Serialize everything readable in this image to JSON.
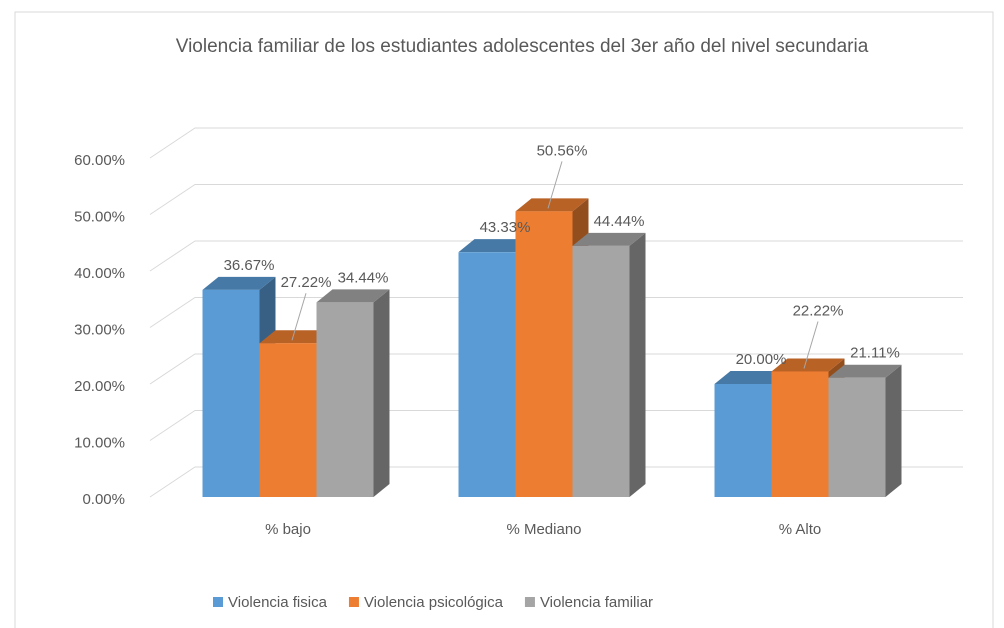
{
  "chart_data": {
    "type": "bar3d",
    "title": "Violencia familiar de los estudiantes adolescentes del 3er año del nivel secundaria",
    "categories": [
      "% bajo",
      "% Mediano",
      "% Alto"
    ],
    "series": [
      {
        "name": "Violencia fisica",
        "color": "#5b9bd5",
        "values": [
          36.67,
          43.33,
          20.0
        ],
        "value_labels": [
          "36.67%",
          "43.33%",
          "20.00%"
        ]
      },
      {
        "name": "Violencia psicológica",
        "color": "#ed7d31",
        "values": [
          27.22,
          50.56,
          22.22
        ],
        "value_labels": [
          "27.22%",
          "50.56%",
          "22.22%"
        ]
      },
      {
        "name": "Violencia familiar",
        "color": "#a5a5a5",
        "values": [
          34.44,
          44.44,
          21.11
        ],
        "value_labels": [
          "34.44%",
          "44.44%",
          "21.11%"
        ]
      }
    ],
    "ylim": [
      0,
      60
    ],
    "yticks": [
      {
        "value": 0,
        "label": "0.00%"
      },
      {
        "value": 10,
        "label": "10.00%"
      },
      {
        "value": 20,
        "label": "20.00%"
      },
      {
        "value": 30,
        "label": "30.00%"
      },
      {
        "value": 40,
        "label": "40.00%"
      },
      {
        "value": 50,
        "label": "50.00%"
      },
      {
        "value": 60,
        "label": "60.00%"
      }
    ],
    "grid": true,
    "legend": "bottom"
  }
}
